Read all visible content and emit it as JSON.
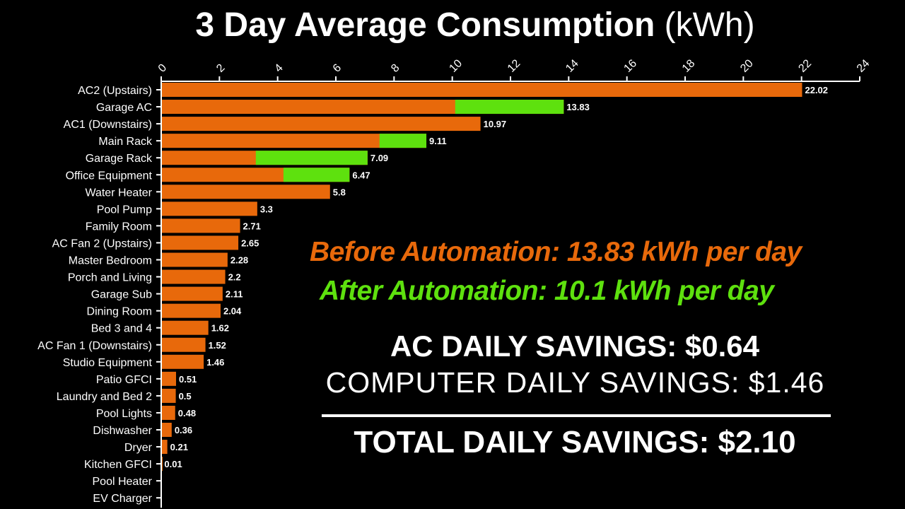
{
  "colors": {
    "background": "#000000",
    "bar_before": "#E8690B",
    "bar_after": "#5EE10E",
    "text": "#FFFFFF"
  },
  "title": {
    "main": "3 Day Average Consumption",
    "unit": "(kWh)"
  },
  "annotations": {
    "before": "Before Automation: 13.83 kWh per day",
    "after": "After Automation: 10.1 kWh per day",
    "ac_savings": "AC DAILY SAVINGS: $0.64",
    "computer_savings": "COMPUTER DAILY SAVINGS: $1.46",
    "total_savings": "TOTAL DAILY SAVINGS: $2.10"
  },
  "chart_data": {
    "type": "bar",
    "orientation": "horizontal",
    "title": "3 Day Average Consumption (kWh)",
    "xlim": [
      0,
      24
    ],
    "xticks": [
      0,
      2,
      4,
      6,
      8,
      10,
      12,
      14,
      16,
      18,
      20,
      22,
      24
    ],
    "xaxis_position": "top",
    "grid": false,
    "categories": [
      "AC2 (Upstairs)",
      "Garage AC",
      "AC1 (Downstairs)",
      "Main Rack",
      "Garage Rack",
      "Office Equipment",
      "Water Heater",
      "Pool Pump",
      "Family Room",
      "AC Fan 2 (Upstairs)",
      "Master Bedroom",
      "Porch and Living",
      "Garage Sub",
      "Dining Room",
      "Bed 3 and 4",
      "AC Fan 1 (Downstairs)",
      "Studio Equipment",
      "Patio GFCI",
      "Laundry and Bed 2",
      "Pool Lights",
      "Dishwasher",
      "Dryer",
      "Kitchen GFCI",
      "Pool Heater",
      "EV Charger"
    ],
    "values": [
      22.02,
      13.83,
      10.97,
      9.11,
      7.09,
      6.47,
      5.8,
      3.3,
      2.71,
      2.65,
      2.28,
      2.2,
      2.11,
      2.04,
      1.62,
      1.52,
      1.46,
      0.51,
      0.5,
      0.48,
      0.36,
      0.21,
      0.01,
      0,
      0
    ],
    "value_labels": [
      "22.02",
      "13.83",
      "10.97",
      "9.11",
      "7.09",
      "6.47",
      "5.8",
      "3.3",
      "2.71",
      "2.65",
      "2.28",
      "2.2",
      "2.11",
      "2.04",
      "1.62",
      "1.52",
      "1.46",
      "0.51",
      "0.5",
      "0.48",
      "0.36",
      "0.21",
      "0.01",
      "",
      ""
    ],
    "after_values": [
      null,
      10.1,
      null,
      7.5,
      3.25,
      4.2,
      null,
      null,
      null,
      null,
      null,
      null,
      null,
      null,
      null,
      null,
      null,
      null,
      null,
      null,
      null,
      null,
      null,
      null,
      null
    ]
  }
}
